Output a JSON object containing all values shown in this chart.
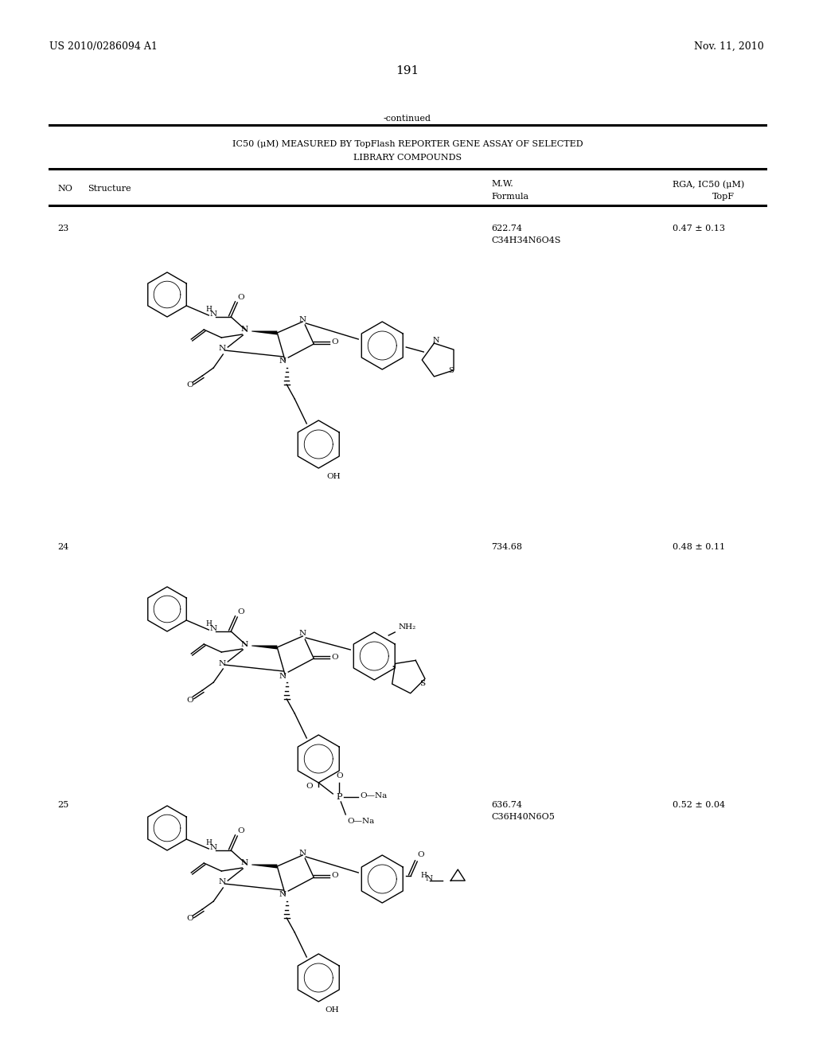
{
  "bg": "#ffffff",
  "patent_left": "US 2010/0286094 A1",
  "patent_right": "Nov. 11, 2010",
  "page_num": "191",
  "continued": "-continued",
  "title1": "IC50 (μM) MEASURED BY TopFlash REPORTER GENE ASSAY OF SELECTED",
  "title2": "LIBRARY COMPOUNDS",
  "col_mw": "M.W.",
  "col_formula": "Formula",
  "col_rga": "RGA, IC50 (μM)",
  "col_topf": "TopF",
  "col_no": "NO",
  "col_struct": "Structure",
  "rows": [
    {
      "no": "23",
      "mw": "622.74",
      "formula": "C34H34N6O4S",
      "ic50": "0.47 ± 0.13"
    },
    {
      "no": "24",
      "mw": "734.68",
      "formula": "",
      "ic50": "0.48 ± 0.11"
    },
    {
      "no": "25",
      "mw": "636.74",
      "formula": "C36H40N6O5",
      "ic50": "0.52 ± 0.04"
    }
  ]
}
